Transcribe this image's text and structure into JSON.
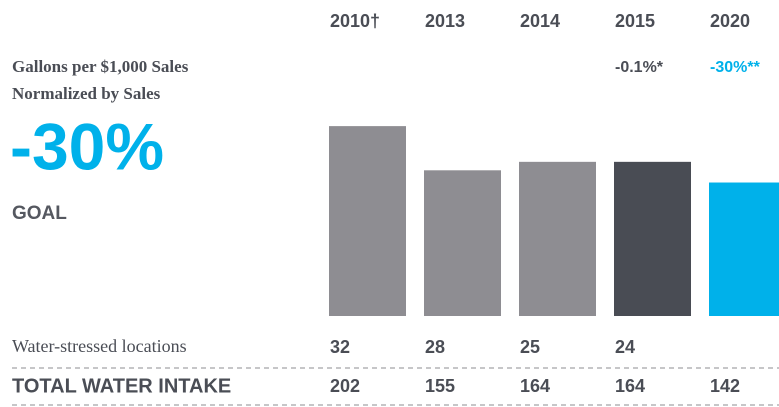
{
  "chart_data": {
    "type": "bar",
    "metric_title": "Gallons per $1,000 Sales",
    "metric_subtitle": "Normalized by Sales",
    "goal_value": "-30%",
    "goal_label": "GOAL",
    "categories": [
      "2010†",
      "2013",
      "2014",
      "2015",
      "2020"
    ],
    "change_labels": [
      null,
      null,
      null,
      "-0.1%*",
      "-30%**"
    ],
    "colors": [
      "#8e8d92",
      "#8e8d92",
      "#8e8d92",
      "#494c54",
      "#00b1ea"
    ],
    "rows": [
      {
        "name": "Water-stressed locations",
        "values": [
          32,
          28,
          25,
          24,
          null
        ]
      },
      {
        "name": "TOTAL WATER INTAKE",
        "values": [
          202,
          155,
          164,
          164,
          142
        ]
      }
    ]
  }
}
